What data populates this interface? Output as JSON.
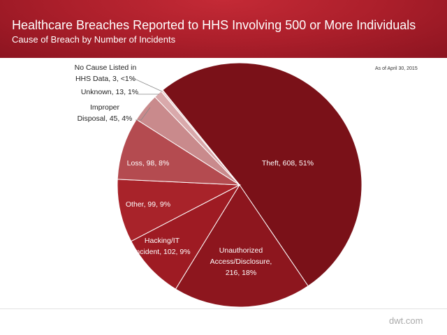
{
  "chart_data": {
    "type": "pie",
    "title": "Healthcare Breaches Reported to HHS Involving 500 or More Individuals",
    "subtitle": "Cause of Breach by Number  of Incidents",
    "note": "As of April 30, 2015",
    "slices": [
      {
        "label": "Theft",
        "value": 608,
        "percent": "51%",
        "color": "#7a1118",
        "text": "Theft, 608, 51%"
      },
      {
        "label": "Unauthorized Access/Disclosure",
        "value": 216,
        "percent": "18%",
        "color": "#8d161e",
        "text": [
          "Unauthorized",
          "Access/Disclosure,",
          "216, 18%"
        ]
      },
      {
        "label": "Hacking/IT Incident",
        "value": 102,
        "percent": "9%",
        "color": "#9e1b23",
        "text": [
          "Hacking/IT",
          "Incident, 102, 9%"
        ]
      },
      {
        "label": "Other",
        "value": 99,
        "percent": "9%",
        "color": "#a8232a",
        "text": "Other, 99, 9%"
      },
      {
        "label": "Loss",
        "value": 98,
        "percent": "8%",
        "color": "#b44b50",
        "text": "Loss, 98, 8%"
      },
      {
        "label": "Improper Disposal",
        "value": 45,
        "percent": "4%",
        "color": "#c98a8c",
        "text": [
          "Improper",
          "Disposal, 45, 4%"
        ]
      },
      {
        "label": "Unknown",
        "value": 13,
        "percent": "1%",
        "color": "#d9a9ab",
        "text": "Unknown, 13, 1%"
      },
      {
        "label": "No Cause Listed in HHS Data",
        "value": 3,
        "percent": "<1%",
        "color": "#ecd0d0",
        "text": [
          "No Cause Listed in",
          "HHS Data, 3, <1%"
        ]
      }
    ]
  },
  "footer": "dwt.com"
}
